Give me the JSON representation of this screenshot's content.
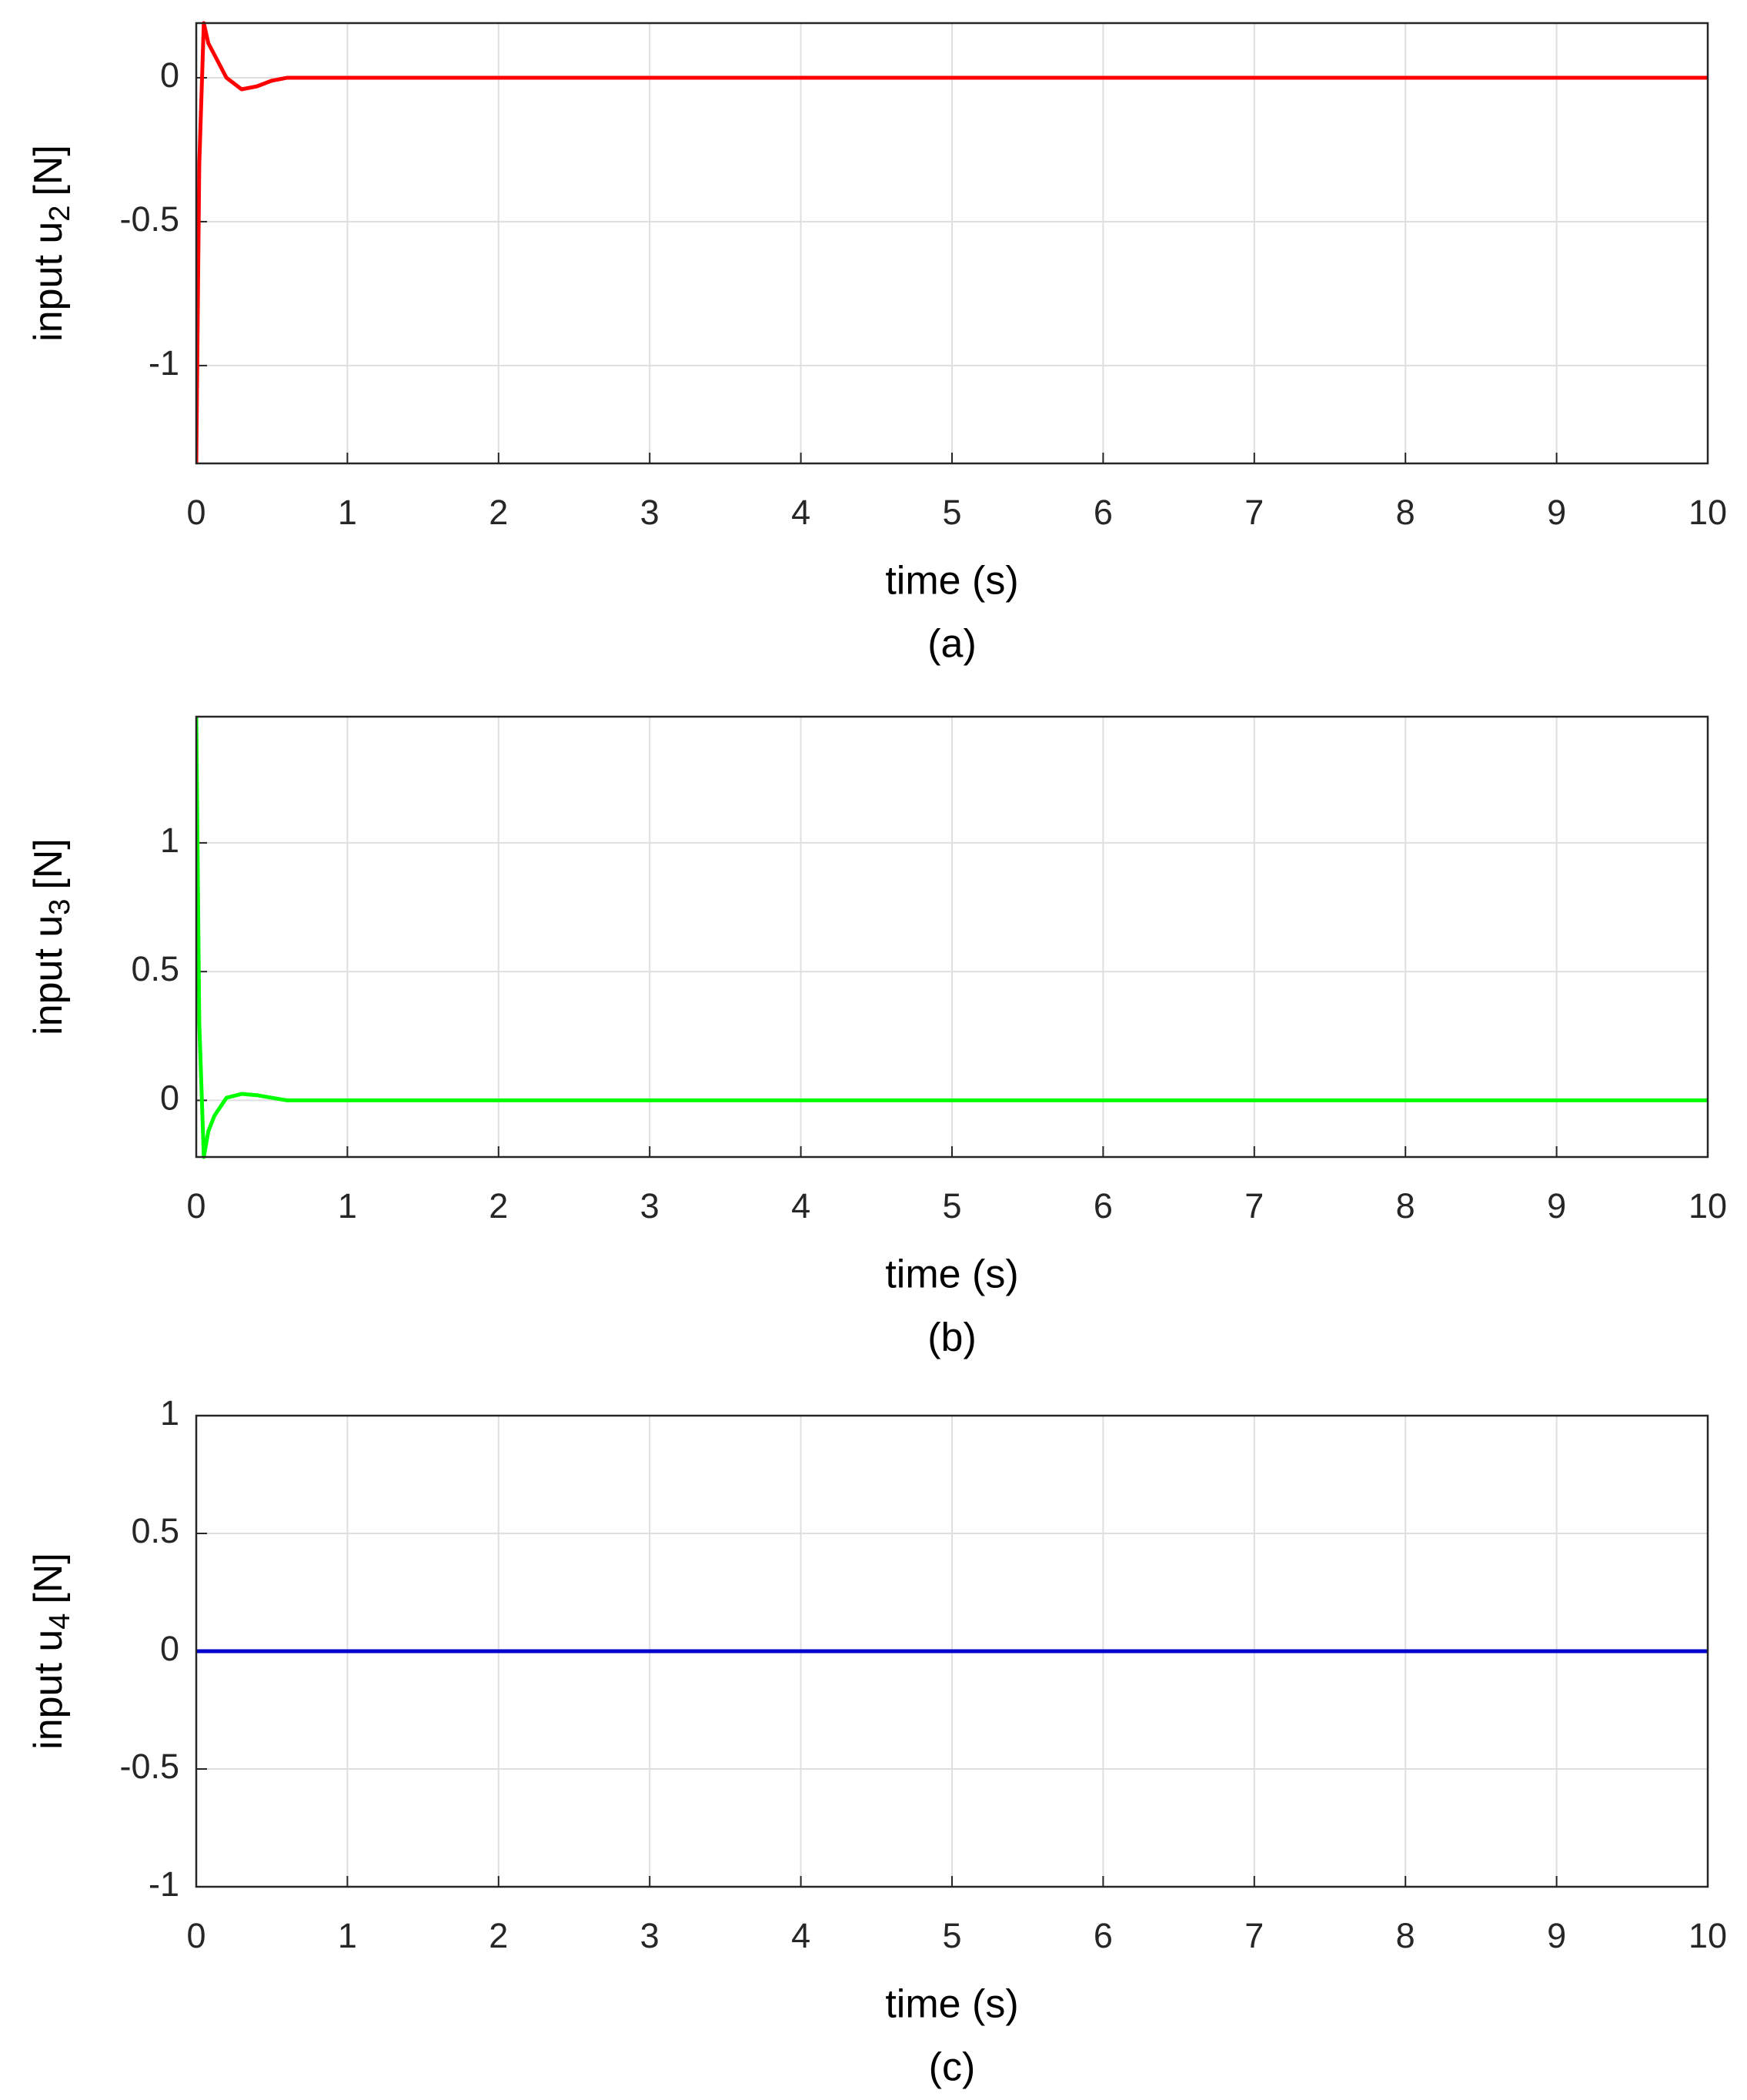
{
  "chart_data": [
    {
      "type": "line",
      "ylabel": [
        "input u",
        "2",
        "[N]"
      ],
      "xlabel": "time (s)",
      "caption": "(a)",
      "x": [
        0,
        0.02,
        0.05,
        0.08,
        0.12,
        0.2,
        0.3,
        0.4,
        0.5,
        0.6,
        0.8,
        10
      ],
      "series": [
        {
          "color": "#ff0000",
          "values": [
            -1.34,
            -0.3,
            0.19,
            0.12,
            0.08,
            0.0,
            -0.04,
            -0.03,
            -0.01,
            0,
            0,
            0
          ]
        }
      ],
      "xlim": [
        0,
        10
      ],
      "xticks": [
        0,
        1,
        2,
        3,
        4,
        5,
        6,
        7,
        8,
        9,
        10
      ],
      "ylim": [
        -1.34,
        0.19
      ],
      "yticks": [
        -1,
        -0.5,
        0
      ],
      "grid": true
    },
    {
      "type": "line",
      "ylabel": [
        "input u",
        "3",
        "[N]"
      ],
      "xlabel": "time (s)",
      "caption": "(b)",
      "x": [
        0,
        0.02,
        0.05,
        0.08,
        0.12,
        0.2,
        0.3,
        0.4,
        0.5,
        0.6,
        0.8,
        10
      ],
      "series": [
        {
          "color": "#00ff00",
          "values": [
            1.49,
            0.3,
            -0.22,
            -0.12,
            -0.06,
            0.01,
            0.025,
            0.02,
            0.01,
            0,
            0,
            0
          ]
        }
      ],
      "xlim": [
        0,
        10
      ],
      "xticks": [
        0,
        1,
        2,
        3,
        4,
        5,
        6,
        7,
        8,
        9,
        10
      ],
      "ylim": [
        -0.22,
        1.49
      ],
      "yticks": [
        0,
        0.5,
        1
      ],
      "grid": true
    },
    {
      "type": "line",
      "ylabel": [
        "input u",
        "4",
        "[N]"
      ],
      "xlabel": "time (s)",
      "caption": "(c)",
      "x": [
        0,
        10
      ],
      "series": [
        {
          "color": "#0000cc",
          "values": [
            0,
            0
          ]
        }
      ],
      "xlim": [
        0,
        10
      ],
      "xticks": [
        0,
        1,
        2,
        3,
        4,
        5,
        6,
        7,
        8,
        9,
        10
      ],
      "ylim": [
        -1,
        1
      ],
      "yticks": [
        -1,
        -0.5,
        0,
        0.5,
        1
      ],
      "grid": true
    }
  ]
}
